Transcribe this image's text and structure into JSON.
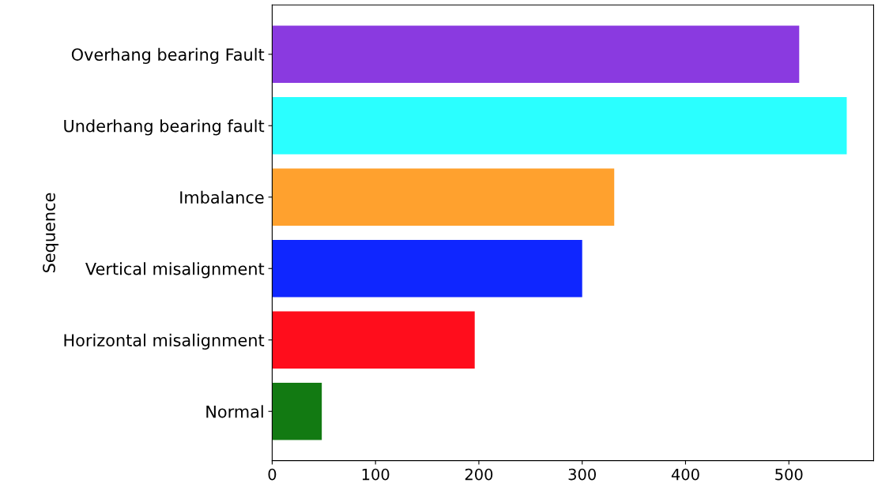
{
  "chart_data": {
    "type": "bar",
    "orientation": "horizontal",
    "ylabel": "Sequence",
    "categories": [
      "Overhang bearing Fault",
      "Underhang bearing fault",
      "Imbalance",
      "Vertical misalignment",
      "Horizontal misalignment",
      "Normal"
    ],
    "values": [
      510,
      556,
      331,
      300,
      196,
      48
    ],
    "colors": [
      "#8a3ae0",
      "#2affff",
      "#ffa12e",
      "#0f26ff",
      "#ff0d1c",
      "#127a12"
    ],
    "xlim": [
      0,
      582
    ],
    "xticks": [
      0,
      100,
      200,
      300,
      400,
      500
    ],
    "grid": false
  }
}
